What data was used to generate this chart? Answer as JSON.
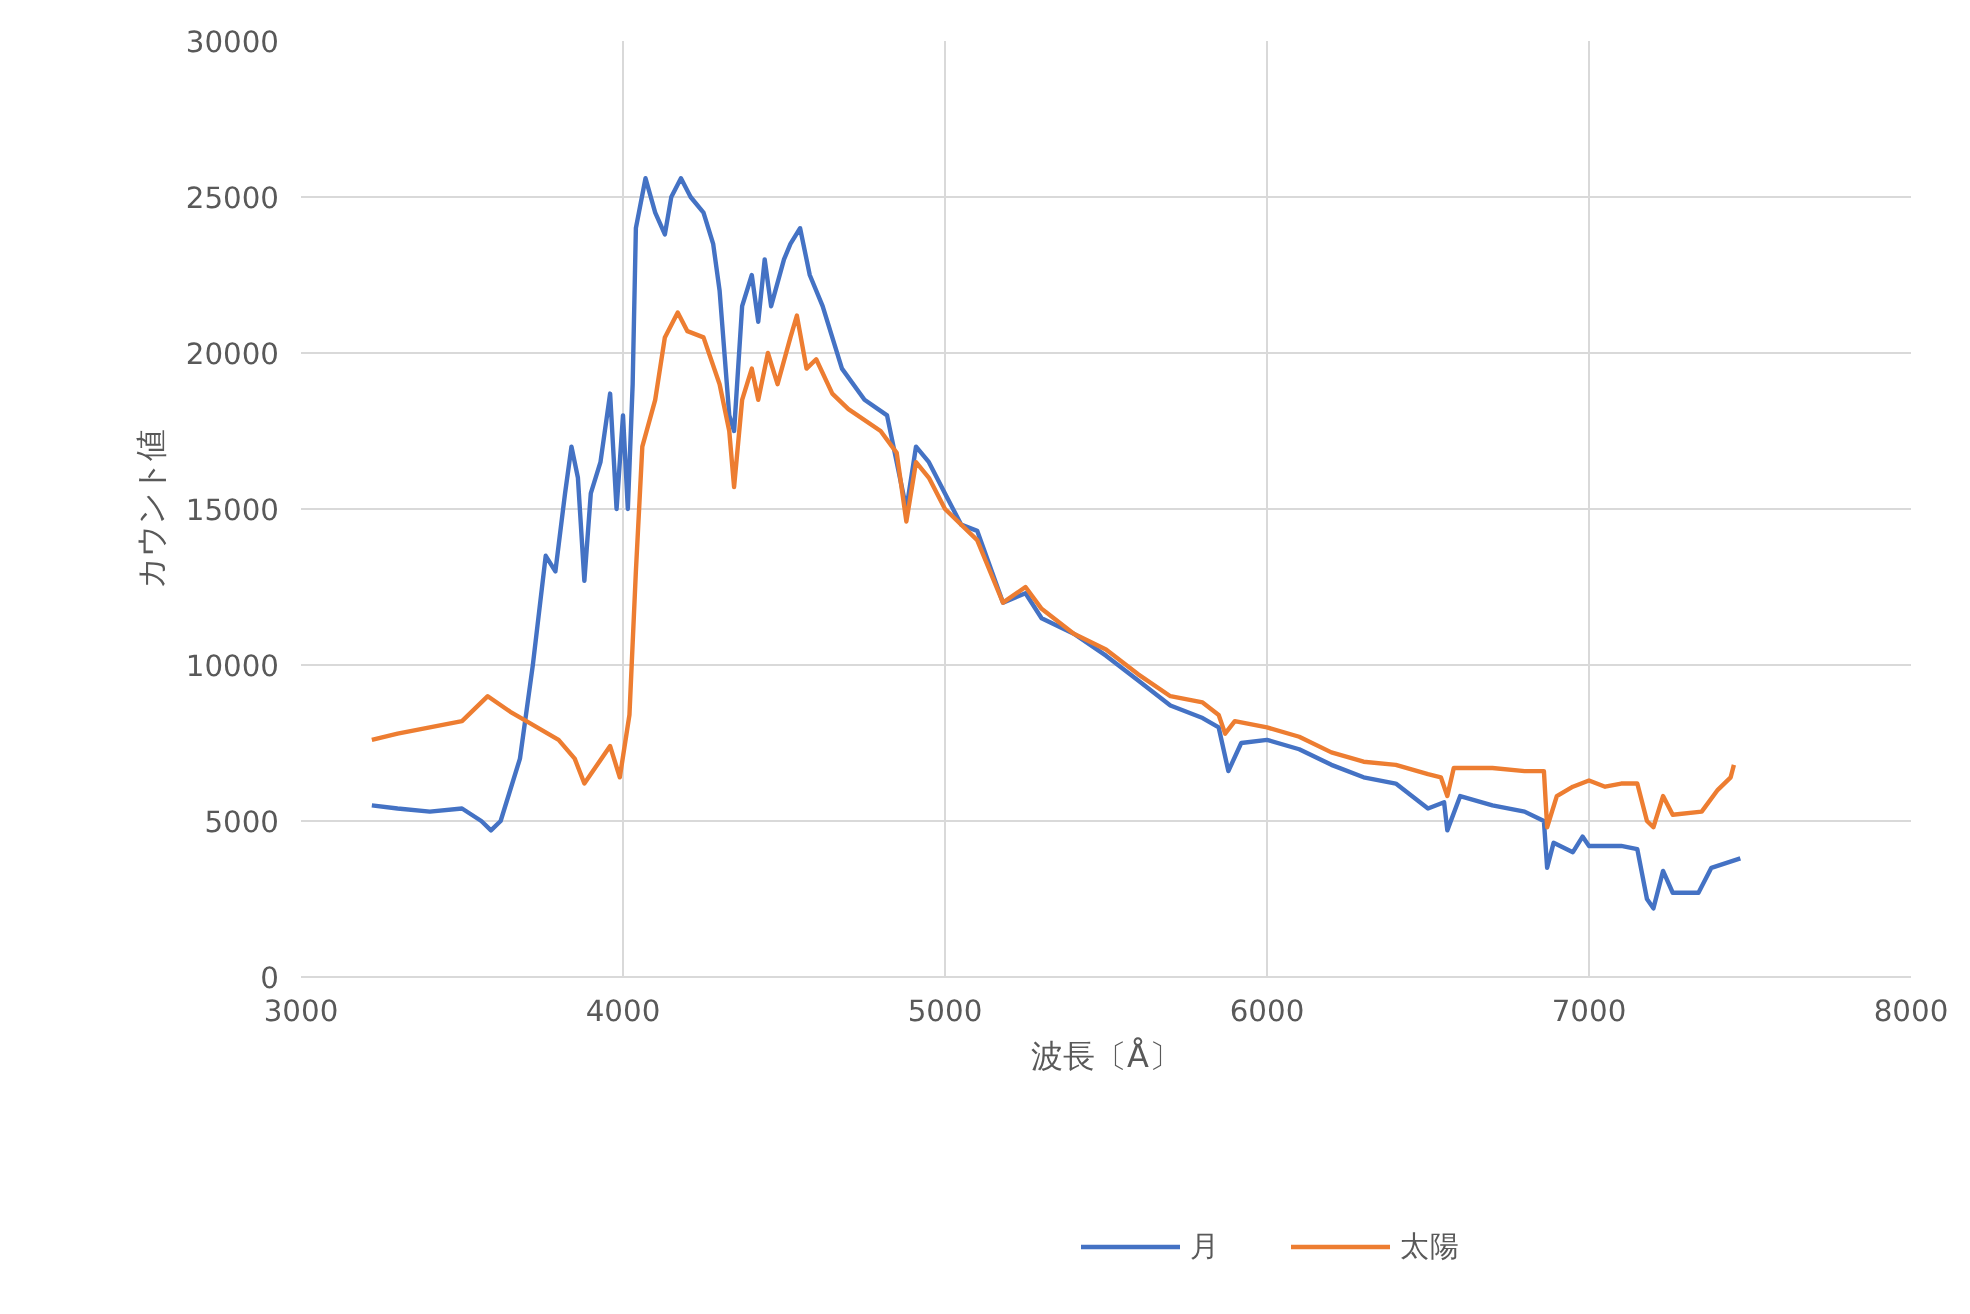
{
  "chart_data": {
    "type": "line",
    "xlabel": "波長〔Å〕",
    "ylabel": "カウント値",
    "xlim": [
      3000,
      8000
    ],
    "ylim": [
      0,
      30000
    ],
    "xticks": [
      3000,
      4000,
      5000,
      6000,
      7000,
      8000
    ],
    "yticks": [
      0,
      5000,
      10000,
      15000,
      20000,
      25000,
      30000
    ],
    "grid": true,
    "legend": "bottom",
    "marker": "none",
    "line_style": "solid",
    "series": [
      {
        "name": "月",
        "color": "#4472c4",
        "x": [
          3220,
          3300,
          3400,
          3500,
          3560,
          3590,
          3620,
          3680,
          3720,
          3760,
          3790,
          3820,
          3840,
          3860,
          3880,
          3900,
          3930,
          3960,
          3980,
          4000,
          4015,
          4030,
          4040,
          4070,
          4100,
          4130,
          4150,
          4180,
          4210,
          4250,
          4280,
          4300,
          4330,
          4345,
          4370,
          4400,
          4420,
          4440,
          4460,
          4500,
          4520,
          4550,
          4580,
          4620,
          4680,
          4750,
          4820,
          4860,
          4880,
          4910,
          4950,
          5000,
          5050,
          5100,
          5180,
          5250,
          5300,
          5400,
          5500,
          5600,
          5700,
          5800,
          5850,
          5880,
          5920,
          6000,
          6100,
          6200,
          6300,
          6400,
          6450,
          6500,
          6550,
          6560,
          6600,
          6700,
          6800,
          6860,
          6870,
          6890,
          6950,
          6980,
          7000,
          7100,
          7150,
          7180,
          7200,
          7230,
          7260,
          7340,
          7380,
          7470
        ],
        "values": [
          5500,
          5400,
          5300,
          5400,
          5000,
          4700,
          5000,
          7000,
          10000,
          13500,
          13000,
          15500,
          17000,
          16000,
          12700,
          15500,
          16500,
          18700,
          15000,
          18000,
          15000,
          19000,
          24000,
          25600,
          24500,
          23800,
          25000,
          25600,
          25000,
          24500,
          23500,
          22000,
          18000,
          17500,
          21500,
          22500,
          21000,
          23000,
          21500,
          23000,
          23500,
          24000,
          22500,
          21500,
          19500,
          18500,
          18000,
          16000,
          15000,
          17000,
          16500,
          15500,
          14500,
          14300,
          12000,
          12300,
          11500,
          11000,
          10300,
          9500,
          8700,
          8300,
          8000,
          6600,
          7500,
          7600,
          7300,
          6800,
          6400,
          6200,
          5800,
          5400,
          5600,
          4700,
          5800,
          5500,
          5300,
          5000,
          3500,
          4300,
          4000,
          4500,
          4200,
          4200,
          4100,
          2500,
          2200,
          3400,
          2700,
          2700,
          3500,
          3800
        ]
      },
      {
        "name": "太陽",
        "color": "#ed7d31",
        "x": [
          3220,
          3300,
          3400,
          3500,
          3580,
          3650,
          3700,
          3800,
          3850,
          3880,
          3920,
          3960,
          3990,
          4020,
          4040,
          4060,
          4100,
          4130,
          4170,
          4200,
          4250,
          4300,
          4330,
          4345,
          4370,
          4400,
          4420,
          4450,
          4480,
          4520,
          4540,
          4570,
          4600,
          4650,
          4700,
          4800,
          4850,
          4880,
          4910,
          4950,
          5000,
          5100,
          5180,
          5250,
          5300,
          5400,
          5500,
          5600,
          5700,
          5800,
          5850,
          5870,
          5900,
          6000,
          6100,
          6200,
          6300,
          6400,
          6500,
          6540,
          6560,
          6580,
          6700,
          6800,
          6860,
          6870,
          6900,
          6950,
          7000,
          7050,
          7100,
          7150,
          7180,
          7200,
          7230,
          7260,
          7350,
          7400,
          7440,
          7450
        ],
        "values": [
          7600,
          7800,
          8000,
          8200,
          9000,
          8500,
          8200,
          7600,
          7000,
          6200,
          6800,
          7400,
          6400,
          8400,
          13000,
          17000,
          18500,
          20500,
          21300,
          20700,
          20500,
          19000,
          17500,
          15700,
          18500,
          19500,
          18500,
          20000,
          19000,
          20500,
          21200,
          19500,
          19800,
          18700,
          18200,
          17500,
          16800,
          14600,
          16500,
          16000,
          15000,
          14000,
          12000,
          12500,
          11800,
          11000,
          10500,
          9700,
          9000,
          8800,
          8400,
          7800,
          8200,
          8000,
          7700,
          7200,
          6900,
          6800,
          6500,
          6400,
          5800,
          6700,
          6700,
          6600,
          6600,
          4800,
          5800,
          6100,
          6300,
          6100,
          6200,
          6200,
          5000,
          4800,
          5800,
          5200,
          5300,
          6000,
          6400,
          6800
        ]
      }
    ]
  }
}
